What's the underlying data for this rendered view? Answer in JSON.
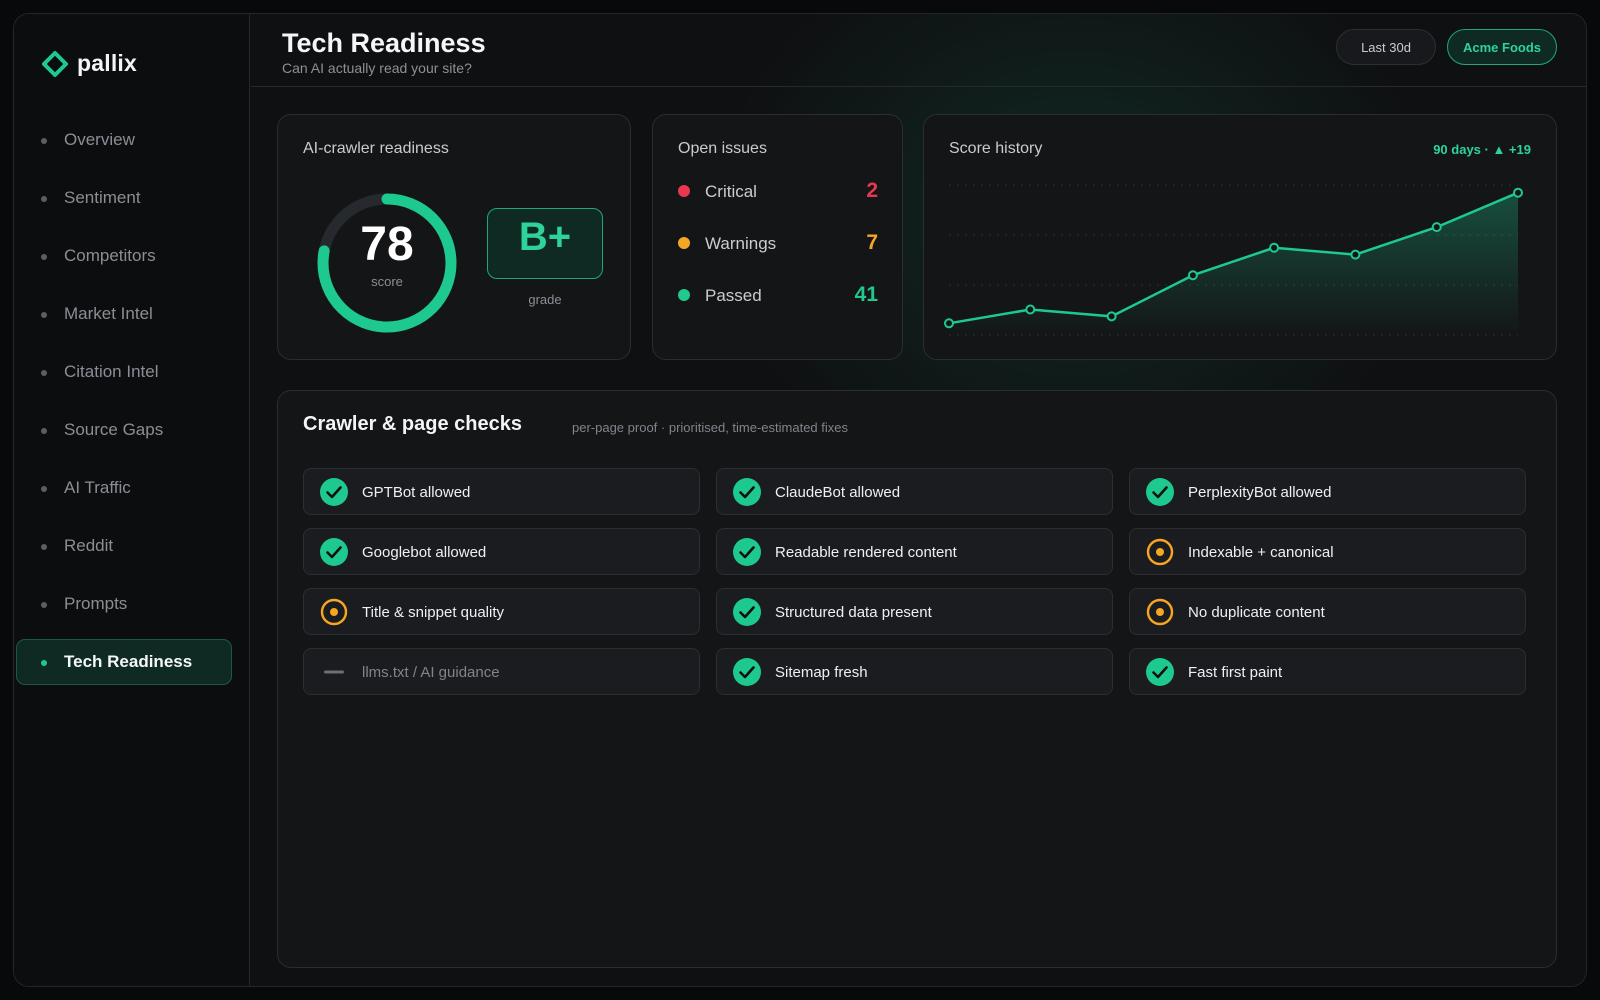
{
  "brand": {
    "name": "pallix",
    "accent": "#1ec98f"
  },
  "sidebar": {
    "items": [
      {
        "label": "Overview",
        "active": false
      },
      {
        "label": "Sentiment",
        "active": false
      },
      {
        "label": "Competitors",
        "active": false
      },
      {
        "label": "Market Intel",
        "active": false
      },
      {
        "label": "Citation Intel",
        "active": false
      },
      {
        "label": "Source Gaps",
        "active": false
      },
      {
        "label": "AI Traffic",
        "active": false
      },
      {
        "label": "Reddit",
        "active": false
      },
      {
        "label": "Prompts",
        "active": false
      },
      {
        "label": "Tech Readiness",
        "active": true
      }
    ]
  },
  "header": {
    "title": "Tech Readiness",
    "subtitle": "Can AI actually read your site?",
    "range_label": "Last 30d",
    "client_label": "Acme Foods"
  },
  "readiness": {
    "title": "AI-crawler readiness",
    "score": "78",
    "score_label": "score",
    "score_fraction": 0.78,
    "grade": "B+",
    "grade_label": "grade"
  },
  "issues": {
    "title": "Open issues",
    "rows": [
      {
        "label": "Critical",
        "count": "2",
        "color": "#e8384f"
      },
      {
        "label": "Warnings",
        "count": "7",
        "color": "#f5a623"
      },
      {
        "label": "Passed",
        "count": "41",
        "color": "#22c98f"
      }
    ]
  },
  "history": {
    "title": "Score history",
    "badge": "90 days · ▲ +19"
  },
  "chart_data": {
    "type": "area",
    "title": "Score history",
    "x": [
      1,
      2,
      3,
      4,
      5,
      6,
      7,
      8
    ],
    "series": [
      {
        "values": [
          59,
          61,
          60,
          66,
          70,
          69,
          73,
          78
        ]
      }
    ],
    "ylim": [
      57,
      80
    ],
    "grid": true,
    "color": "#1ec98f"
  },
  "checks": {
    "title": "Crawler & page checks",
    "subtitle": "per-page proof · prioritised, time-estimated fixes",
    "items": [
      {
        "label": "GPTBot allowed",
        "status": "pass"
      },
      {
        "label": "ClaudeBot allowed",
        "status": "pass"
      },
      {
        "label": "PerplexityBot allowed",
        "status": "pass"
      },
      {
        "label": "Googlebot allowed",
        "status": "pass"
      },
      {
        "label": "Readable rendered content",
        "status": "pass"
      },
      {
        "label": "Indexable + canonical",
        "status": "warn"
      },
      {
        "label": "Title & snippet quality",
        "status": "warn"
      },
      {
        "label": "Structured data present",
        "status": "pass"
      },
      {
        "label": "No duplicate content",
        "status": "warn"
      },
      {
        "label": "llms.txt / AI guidance",
        "status": "none"
      },
      {
        "label": "Sitemap fresh",
        "status": "pass"
      },
      {
        "label": "Fast first paint",
        "status": "pass"
      }
    ],
    "status_colors": {
      "pass": "#1ec98f",
      "warn": "#f5a623",
      "none": "#6b7075"
    }
  }
}
